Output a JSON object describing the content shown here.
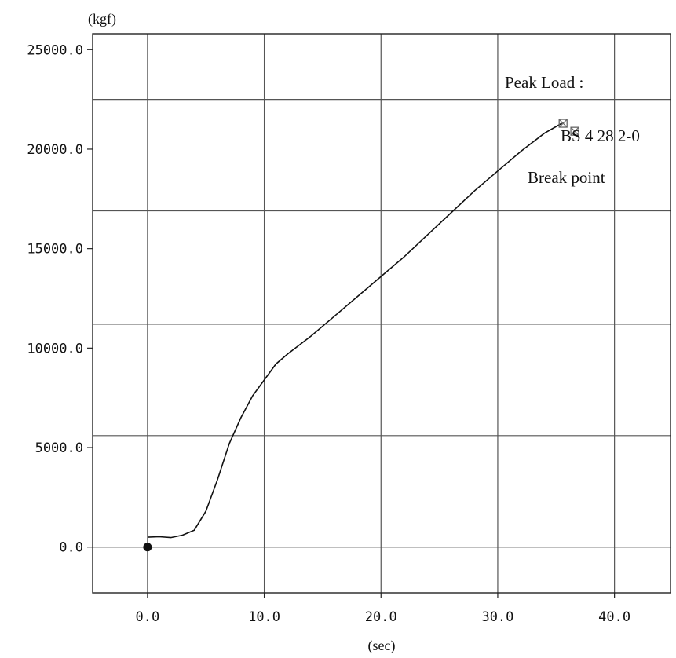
{
  "chart_data": {
    "type": "line",
    "title": "",
    "xlabel": "(sec)",
    "ylabel": "(kgf)",
    "xlim": [
      -4.7,
      44.8
    ],
    "ylim": [
      -2300,
      25800
    ],
    "grid": true,
    "x_ticks": [
      0,
      10,
      20,
      30,
      40
    ],
    "x_tick_labels": [
      "0.0",
      "10.0",
      "20.0",
      "30.0",
      "40.0"
    ],
    "y_ticks": [
      0,
      5000,
      10000,
      15000,
      20000,
      25000
    ],
    "y_tick_labels": [
      "0.0",
      "5000.0",
      "10000.0",
      "15000.0",
      "20000.0",
      "25000.0"
    ],
    "x_grid": [
      0,
      10,
      20,
      30,
      40
    ],
    "y_grid": [
      0,
      5600,
      11200,
      16900,
      22500
    ],
    "series": [
      {
        "name": "",
        "color": "#111111",
        "points": [
          [
            0,
            500
          ],
          [
            1,
            520
          ],
          [
            2,
            480
          ],
          [
            3,
            600
          ],
          [
            4,
            850
          ],
          [
            5,
            1800
          ],
          [
            6,
            3400
          ],
          [
            7,
            5200
          ],
          [
            8,
            6500
          ],
          [
            9,
            7600
          ],
          [
            10,
            8400
          ],
          [
            11,
            9200
          ],
          [
            12,
            9700
          ],
          [
            14,
            10600
          ],
          [
            16,
            11600
          ],
          [
            18,
            12600
          ],
          [
            20,
            13600
          ],
          [
            22,
            14600
          ],
          [
            24,
            15700
          ],
          [
            26,
            16800
          ],
          [
            28,
            17900
          ],
          [
            30,
            18900
          ],
          [
            32,
            19900
          ],
          [
            34,
            20800
          ],
          [
            35.5,
            21300
          ]
        ]
      }
    ],
    "start_marker": {
      "x": 0,
      "y": 0
    },
    "peak_marker": {
      "x": 35.6,
      "y": 21300
    },
    "break_marker": {
      "x": 36.6,
      "y": 20900
    },
    "annotations": {
      "peak_load": "Peak Load :",
      "sample_id": "BS 4 28 2-0",
      "break_point": "Break point"
    }
  }
}
